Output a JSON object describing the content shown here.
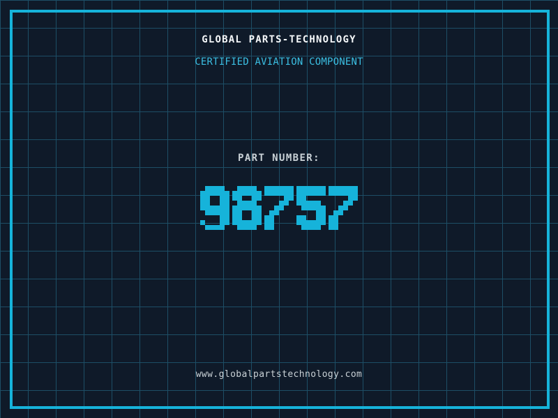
{
  "header": {
    "title": "GLOBAL PARTS-TECHNOLOGY",
    "subtitle": "CERTIFIED AVIATION COMPONENT"
  },
  "part": {
    "label": "PART NUMBER:",
    "number": "98757"
  },
  "footer": {
    "url": "www.globalpartstechnology.com"
  },
  "colors": {
    "background": "#0f1a29",
    "grid_line": "#1d4e66",
    "accent_cyan": "#16b3da",
    "subtitle_cyan": "#3bbfe3",
    "text_light": "#c9d1d6",
    "title_white": "#f4f7f9"
  }
}
